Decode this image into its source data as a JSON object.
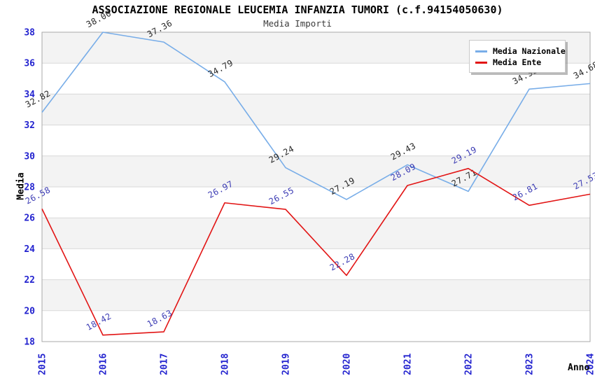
{
  "chart_data": {
    "type": "line",
    "title": "ASSOCIAZIONE REGIONALE LEUCEMIA INFANZIA TUMORI (c.f.94154050630)",
    "subtitle": "Media Importi",
    "xlabel": "Anno",
    "ylabel": "Media",
    "x": [
      2015,
      2016,
      2017,
      2018,
      2019,
      2020,
      2021,
      2022,
      2023,
      2024
    ],
    "series": [
      {
        "name": "Media Nazionale",
        "color": "#78ade8",
        "label_color": "#262626",
        "values": [
          32.82,
          38.0,
          37.36,
          34.79,
          29.24,
          27.19,
          29.43,
          27.71,
          34.32,
          34.68
        ]
      },
      {
        "name": "Media Ente",
        "color": "#e21515",
        "label_color": "#3c3cb4",
        "values": [
          26.58,
          18.42,
          18.63,
          26.97,
          26.55,
          22.28,
          28.09,
          29.19,
          26.81,
          27.53
        ]
      }
    ],
    "ylim": [
      18,
      38
    ],
    "ytick_step": 2,
    "yticks": [
      18,
      20,
      22,
      24,
      26,
      28,
      30,
      32,
      34,
      36,
      38
    ],
    "grid": "horizontal-bands-on",
    "legend_position": "top-right",
    "axis_tick_color": "#2323cf",
    "band_color": "#f3f3f3",
    "gridline_color": "#d9d9d9",
    "frame_color": "#a8a8a8",
    "point_label_decimals": 2
  }
}
